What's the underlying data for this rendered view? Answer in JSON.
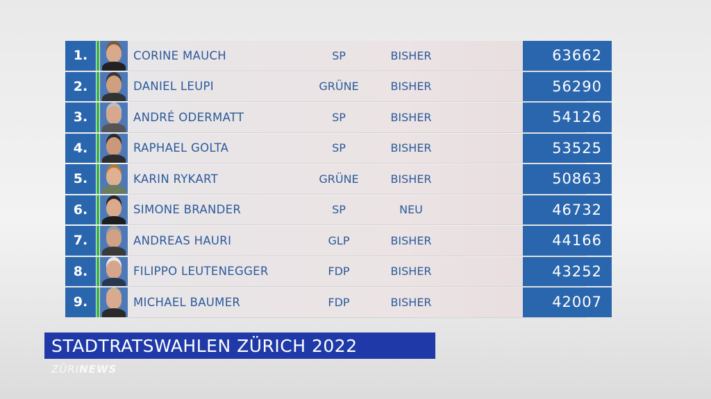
{
  "results": [
    {
      "rank": "1.",
      "name": "CORINE MAUCH",
      "party": "SP",
      "status": "BISHER",
      "votes": "63662",
      "skin": "#d9a98c",
      "hair": "#7a5a3f",
      "shirt": "#222"
    },
    {
      "rank": "2.",
      "name": "DANIEL LEUPI",
      "party": "GRÜNE",
      "status": "BISHER",
      "votes": "56290",
      "skin": "#cfa080",
      "hair": "#3c3631",
      "shirt": "#333"
    },
    {
      "rank": "3.",
      "name": "ANDRÉ ODERMATT",
      "party": "SP",
      "status": "BISHER",
      "votes": "54126",
      "skin": "#d6a88e",
      "hair": "#bdbdbd",
      "shirt": "#555"
    },
    {
      "rank": "4.",
      "name": "RAPHAEL GOLTA",
      "party": "SP",
      "status": "BISHER",
      "votes": "53525",
      "skin": "#c9997a",
      "hair": "#2d2a28",
      "shirt": "#2c2c2c"
    },
    {
      "rank": "5.",
      "name": "KARIN RYKART",
      "party": "GRÜNE",
      "status": "BISHER",
      "votes": "50863",
      "skin": "#e0b191",
      "hair": "#b07a3c",
      "shirt": "#6b7d5c"
    },
    {
      "rank": "6.",
      "name": "SIMONE BRANDER",
      "party": "SP",
      "status": "NEU",
      "votes": "46732",
      "skin": "#dba98b",
      "hair": "#2a221d",
      "shirt": "#1d1d1d"
    },
    {
      "rank": "7.",
      "name": "ANDREAS HAURI",
      "party": "GLP",
      "status": "BISHER",
      "votes": "44166",
      "skin": "#d1a185",
      "hair": "#9a9a9a",
      "shirt": "#3a3a3a"
    },
    {
      "rank": "8.",
      "name": "FILIPPO LEUTENEGGER",
      "party": "FDP",
      "status": "BISHER",
      "votes": "43252",
      "skin": "#d7a58a",
      "hair": "#e8e8e8",
      "shirt": "#2b3650"
    },
    {
      "rank": "9.",
      "name": "MICHAEL BAUMER",
      "party": "FDP",
      "status": "BISHER",
      "votes": "42007",
      "skin": "#d9aa8e",
      "hair": "#d0b08e",
      "shirt": "#2a2a2a"
    }
  ],
  "headline": "STADTRATSWAHLEN ZÜRICH 2022",
  "logo": {
    "part1": "ZÜRI",
    "part2": "NEWS"
  },
  "colors": {
    "accent_blue": "#2a66ad",
    "headline_blue": "#1f3aa8",
    "green_stripe": "#3bb54a"
  }
}
